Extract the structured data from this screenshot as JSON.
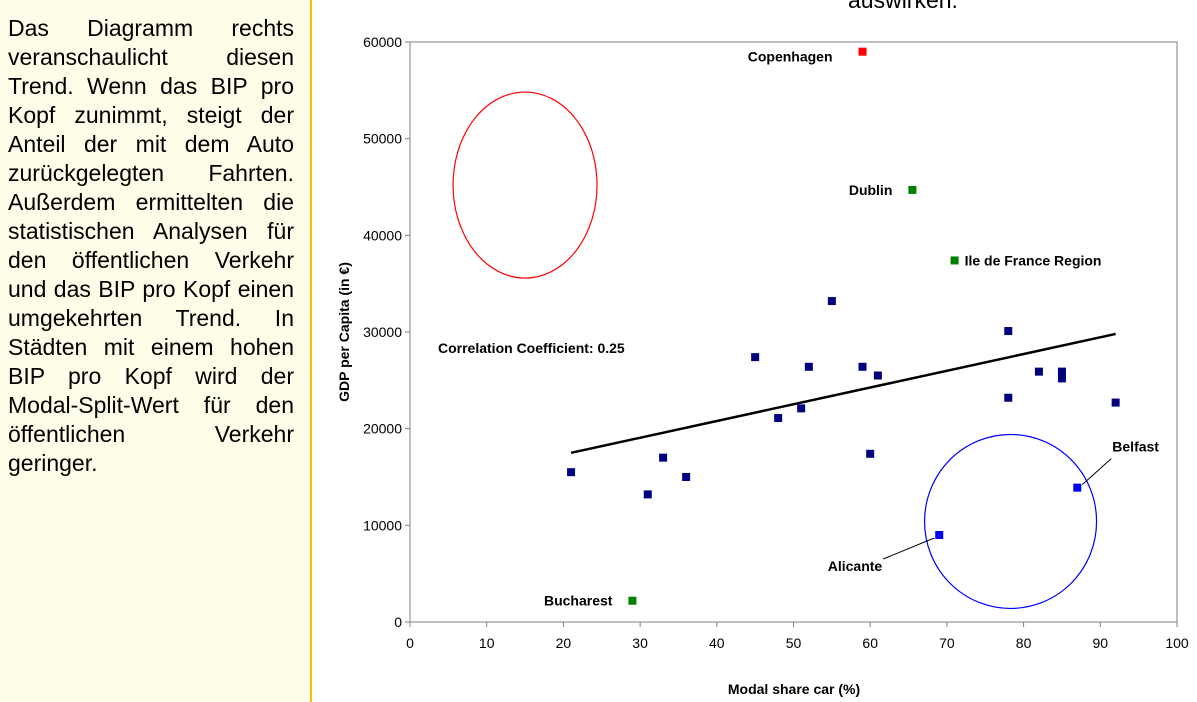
{
  "side_text": "Das Diagramm rechts veranschaulicht diesen Trend. Wenn das BIP pro Kopf zunimmt, steigt der Anteil der mit dem Auto zurückgelegten Fahrten. Außerdem ermittelten die statistischen Analysen für den öffentlichen Verkehr und das BIP pro Kopf einen umgekehrten Trend. In Städten mit einem hohen BIP pro Kopf wird der Modal-Split-Wert für den öffentlichen Verkehr geringer.",
  "top_text": "auswirken.",
  "colors": {
    "point": "#00007f",
    "red": "#ff0000",
    "green": "#008000",
    "blue": "#0000ff",
    "circle_red": "#ff0000",
    "circle_blue": "#0000ff",
    "panel_border": "#f2c200"
  },
  "chart_data": {
    "type": "scatter",
    "xlabel": "Modal share car (%)",
    "ylabel": "GDP per Capita (in €)",
    "xlim": [
      0,
      100
    ],
    "ylim": [
      0,
      60000
    ],
    "x_ticks": [
      "0",
      "10",
      "20",
      "30",
      "40",
      "50",
      "60",
      "70",
      "80",
      "90",
      "100"
    ],
    "y_ticks": [
      "0",
      "10000",
      "20000",
      "30000",
      "40000",
      "50000",
      "60000"
    ],
    "annotation": "Correlation Coefficient: 0.25",
    "trendline": {
      "x": [
        21,
        92
      ],
      "y": [
        17500,
        29800
      ]
    },
    "points": [
      {
        "x": 21,
        "y": 15500
      },
      {
        "x": 31,
        "y": 13200
      },
      {
        "x": 33,
        "y": 17000
      },
      {
        "x": 36,
        "y": 15000
      },
      {
        "x": 45,
        "y": 27400
      },
      {
        "x": 48,
        "y": 21100
      },
      {
        "x": 51,
        "y": 22100
      },
      {
        "x": 52,
        "y": 26400
      },
      {
        "x": 55,
        "y": 33200
      },
      {
        "x": 59,
        "y": 26400
      },
      {
        "x": 60,
        "y": 17400
      },
      {
        "x": 61,
        "y": 25500
      },
      {
        "x": 78,
        "y": 30100
      },
      {
        "x": 78,
        "y": 23200
      },
      {
        "x": 82,
        "y": 25900
      },
      {
        "x": 85,
        "y": 25900
      },
      {
        "x": 85,
        "y": 25200
      },
      {
        "x": 92,
        "y": 22700
      }
    ],
    "highlighted": [
      {
        "label": "Copenhagen",
        "x": 59,
        "y": 59000,
        "color": "red"
      },
      {
        "label": "Dublin",
        "x": 65.5,
        "y": 44700,
        "color": "green"
      },
      {
        "label": "Ile de France Region",
        "x": 71,
        "y": 37400,
        "color": "green"
      },
      {
        "label": "Bucharest",
        "x": 29,
        "y": 2200,
        "color": "green"
      },
      {
        "label": "Alicante",
        "x": 69,
        "y": 9000,
        "color": "blue"
      },
      {
        "label": "Belfast",
        "x": 87,
        "y": 13900,
        "color": "blue"
      }
    ]
  }
}
